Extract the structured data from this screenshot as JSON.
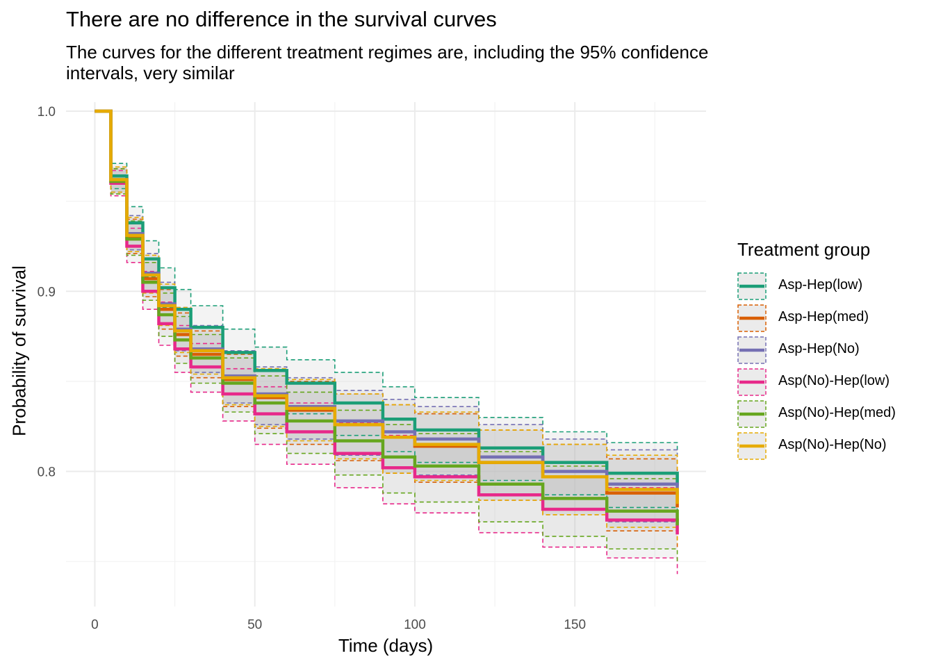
{
  "chart_data": {
    "type": "line",
    "title": "There are no difference in the survival curves",
    "subtitle": "The curves for the different treatment regimes are, including the 95% confidence\n intervals, very similar",
    "xlabel": "Time (days)",
    "ylabel": "Probability of survival",
    "xlim": [
      -9,
      191
    ],
    "ylim": [
      0.725,
      1.005
    ],
    "x_ticks": [
      0,
      50,
      100,
      150
    ],
    "y_ticks": [
      0.8,
      0.9,
      1.0
    ],
    "x_tick_labels": [
      "0",
      "50",
      "100",
      "150"
    ],
    "y_tick_labels": [
      "0.8",
      "0.9",
      "1.0"
    ],
    "grid": true,
    "legend_position": "right",
    "legend_title": "Treatment group",
    "x": [
      0,
      5,
      10,
      15,
      20,
      25,
      30,
      40,
      50,
      60,
      75,
      90,
      100,
      120,
      140,
      160,
      182
    ],
    "series": [
      {
        "name": "Asp-Hep(low)",
        "color": "#1b9e77",
        "values": [
          1.0,
          0.964,
          0.938,
          0.918,
          0.902,
          0.89,
          0.88,
          0.866,
          0.856,
          0.849,
          0.838,
          0.829,
          0.823,
          0.813,
          0.805,
          0.799,
          0.792
        ],
        "lower": [
          1.0,
          0.957,
          0.93,
          0.908,
          0.891,
          0.878,
          0.867,
          0.852,
          0.841,
          0.832,
          0.82,
          0.811,
          0.805,
          0.795,
          0.787,
          0.78,
          0.772
        ],
        "upper": [
          1.0,
          0.971,
          0.947,
          0.928,
          0.913,
          0.901,
          0.892,
          0.879,
          0.869,
          0.862,
          0.855,
          0.847,
          0.841,
          0.83,
          0.822,
          0.816,
          0.81
        ]
      },
      {
        "name": "Asp-Hep(med)",
        "color": "#d95f02",
        "values": [
          1.0,
          0.961,
          0.93,
          0.907,
          0.89,
          0.876,
          0.865,
          0.851,
          0.841,
          0.834,
          0.826,
          0.819,
          0.814,
          0.805,
          0.797,
          0.788,
          0.78
        ],
        "lower": [
          1.0,
          0.954,
          0.921,
          0.897,
          0.879,
          0.864,
          0.852,
          0.836,
          0.824,
          0.815,
          0.806,
          0.799,
          0.794,
          0.784,
          0.776,
          0.767,
          0.758
        ],
        "upper": [
          1.0,
          0.968,
          0.94,
          0.918,
          0.901,
          0.888,
          0.878,
          0.865,
          0.856,
          0.85,
          0.843,
          0.837,
          0.832,
          0.823,
          0.815,
          0.807,
          0.8
        ]
      },
      {
        "name": "Asp-Hep(No)",
        "color": "#7570b3",
        "values": [
          1.0,
          0.962,
          0.932,
          0.91,
          0.893,
          0.879,
          0.868,
          0.853,
          0.843,
          0.836,
          0.828,
          0.822,
          0.818,
          0.808,
          0.8,
          0.793,
          0.787
        ],
        "lower": [
          1.0,
          0.955,
          0.923,
          0.9,
          0.882,
          0.867,
          0.855,
          0.838,
          0.826,
          0.818,
          0.809,
          0.802,
          0.798,
          0.787,
          0.779,
          0.772,
          0.765
        ],
        "upper": [
          1.0,
          0.969,
          0.942,
          0.921,
          0.905,
          0.891,
          0.881,
          0.867,
          0.858,
          0.852,
          0.845,
          0.84,
          0.836,
          0.826,
          0.818,
          0.812,
          0.806
        ]
      },
      {
        "name": "Asp(No)-Hep(low)",
        "color": "#e7298a",
        "values": [
          1.0,
          0.96,
          0.925,
          0.9,
          0.882,
          0.868,
          0.858,
          0.843,
          0.832,
          0.822,
          0.81,
          0.802,
          0.797,
          0.787,
          0.779,
          0.773,
          0.765
        ],
        "lower": [
          1.0,
          0.953,
          0.916,
          0.89,
          0.87,
          0.855,
          0.844,
          0.828,
          0.815,
          0.804,
          0.791,
          0.782,
          0.777,
          0.766,
          0.758,
          0.752,
          0.743
        ],
        "upper": [
          1.0,
          0.967,
          0.935,
          0.911,
          0.894,
          0.881,
          0.871,
          0.857,
          0.847,
          0.838,
          0.827,
          0.82,
          0.815,
          0.805,
          0.797,
          0.791,
          0.785
        ]
      },
      {
        "name": "Asp(No)-Hep(med)",
        "color": "#66a61e",
        "values": [
          1.0,
          0.961,
          0.929,
          0.905,
          0.887,
          0.873,
          0.863,
          0.849,
          0.838,
          0.828,
          0.817,
          0.808,
          0.803,
          0.793,
          0.785,
          0.778,
          0.77
        ],
        "lower": [
          1.0,
          0.954,
          0.92,
          0.895,
          0.875,
          0.86,
          0.849,
          0.833,
          0.821,
          0.81,
          0.798,
          0.788,
          0.783,
          0.772,
          0.764,
          0.757,
          0.749
        ],
        "upper": [
          1.0,
          0.968,
          0.939,
          0.916,
          0.899,
          0.886,
          0.876,
          0.863,
          0.853,
          0.844,
          0.834,
          0.826,
          0.821,
          0.811,
          0.803,
          0.796,
          0.789
        ]
      },
      {
        "name": "Asp(No)-Hep(No)",
        "color": "#e6ab02",
        "values": [
          1.0,
          0.962,
          0.931,
          0.909,
          0.892,
          0.878,
          0.867,
          0.852,
          0.842,
          0.835,
          0.826,
          0.819,
          0.815,
          0.805,
          0.797,
          0.79,
          0.782
        ],
        "lower": [
          1.0,
          0.955,
          0.922,
          0.899,
          0.881,
          0.866,
          0.854,
          0.837,
          0.825,
          0.817,
          0.807,
          0.799,
          0.795,
          0.784,
          0.776,
          0.769,
          0.76
        ],
        "upper": [
          1.0,
          0.969,
          0.941,
          0.92,
          0.904,
          0.891,
          0.88,
          0.866,
          0.857,
          0.851,
          0.843,
          0.837,
          0.833,
          0.823,
          0.815,
          0.809,
          0.801
        ]
      }
    ]
  }
}
